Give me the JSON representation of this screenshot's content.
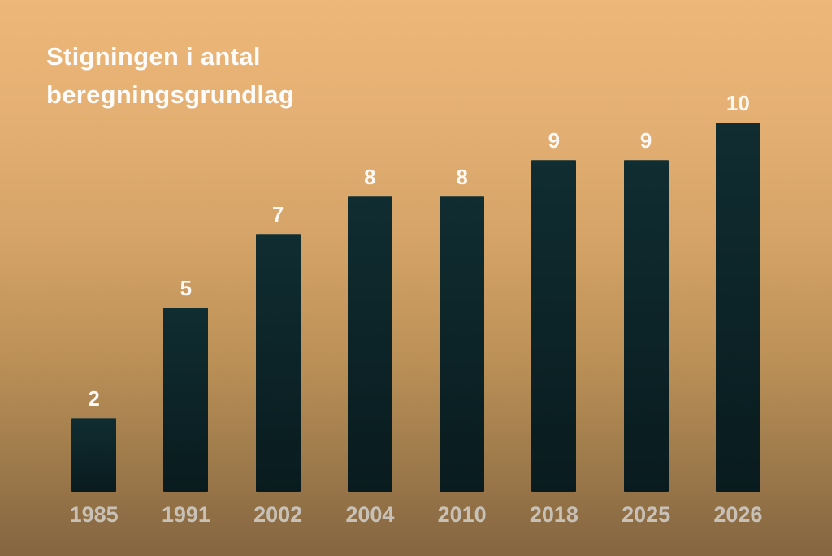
{
  "header": {
    "title_lines": [
      "Stigningen i antal",
      "beregningsgrundlag"
    ]
  },
  "chart_data": {
    "type": "bar",
    "title": "Stigningen i antal beregningsgrundlag",
    "categories": [
      "1985",
      "1991",
      "2002",
      "2004",
      "2010",
      "2018",
      "2025",
      "2026"
    ],
    "values": [
      2,
      5,
      7,
      8,
      8,
      9,
      9,
      10
    ],
    "xlabel": "",
    "ylabel": "",
    "ylim": [
      0,
      10
    ],
    "grid": false,
    "legend": "none",
    "axis_lines": "none",
    "data_labels_position": "above-bars",
    "colors": {
      "background_top": "#ecb778",
      "background_bottom": "#846540",
      "bar": "#0c2327",
      "title_text": "#fdfcfa",
      "value_label_text": "#faf8f4",
      "category_label_text": "#c7c1b8"
    }
  }
}
